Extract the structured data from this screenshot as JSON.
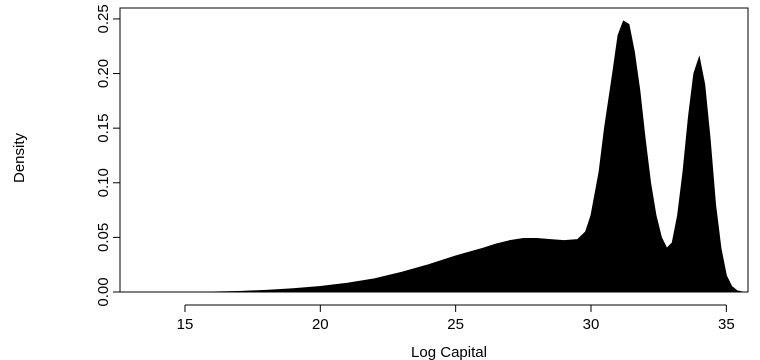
{
  "chart_data": {
    "type": "area",
    "title": "",
    "xlabel": "Log Capital",
    "ylabel": "Density",
    "xlim": [
      12.6,
      35.8
    ],
    "ylim": [
      0,
      0.26
    ],
    "x_ticks": [
      15,
      20,
      25,
      30,
      35
    ],
    "x_tick_labels": [
      "15",
      "20",
      "25",
      "30",
      "35"
    ],
    "y_ticks": [
      0,
      0.05,
      0.1,
      0.15,
      0.2,
      0.25
    ],
    "y_tick_labels": [
      "0.00",
      "0.05",
      "0.10",
      "0.15",
      "0.20",
      "0.25"
    ],
    "grid": false,
    "legend": "none",
    "fill_color": "#000000",
    "series": [
      {
        "x": [
          13,
          15,
          16,
          17,
          17.5,
          18,
          19,
          20,
          21,
          22,
          23,
          24,
          25,
          26,
          26.5,
          27,
          27.5,
          28,
          28.5,
          29,
          29.5,
          29.8,
          30,
          30.3,
          30.5,
          30.8,
          31,
          31.2,
          31.4,
          31.6,
          31.8,
          32,
          32.2,
          32.4,
          32.6,
          32.8,
          33,
          33.2,
          33.4,
          33.6,
          33.8,
          34,
          34.2,
          34.4,
          34.6,
          34.8,
          35,
          35.2,
          35.4,
          35.6
        ],
        "y": [
          0,
          0,
          0,
          0.0005,
          0.001,
          0.0015,
          0.003,
          0.005,
          0.008,
          0.012,
          0.018,
          0.025,
          0.033,
          0.04,
          0.044,
          0.047,
          0.049,
          0.049,
          0.048,
          0.047,
          0.048,
          0.055,
          0.07,
          0.11,
          0.15,
          0.2,
          0.235,
          0.248,
          0.245,
          0.22,
          0.185,
          0.14,
          0.1,
          0.07,
          0.05,
          0.04,
          0.045,
          0.07,
          0.11,
          0.16,
          0.2,
          0.215,
          0.19,
          0.14,
          0.08,
          0.04,
          0.015,
          0.005,
          0.001,
          0
        ]
      }
    ]
  }
}
